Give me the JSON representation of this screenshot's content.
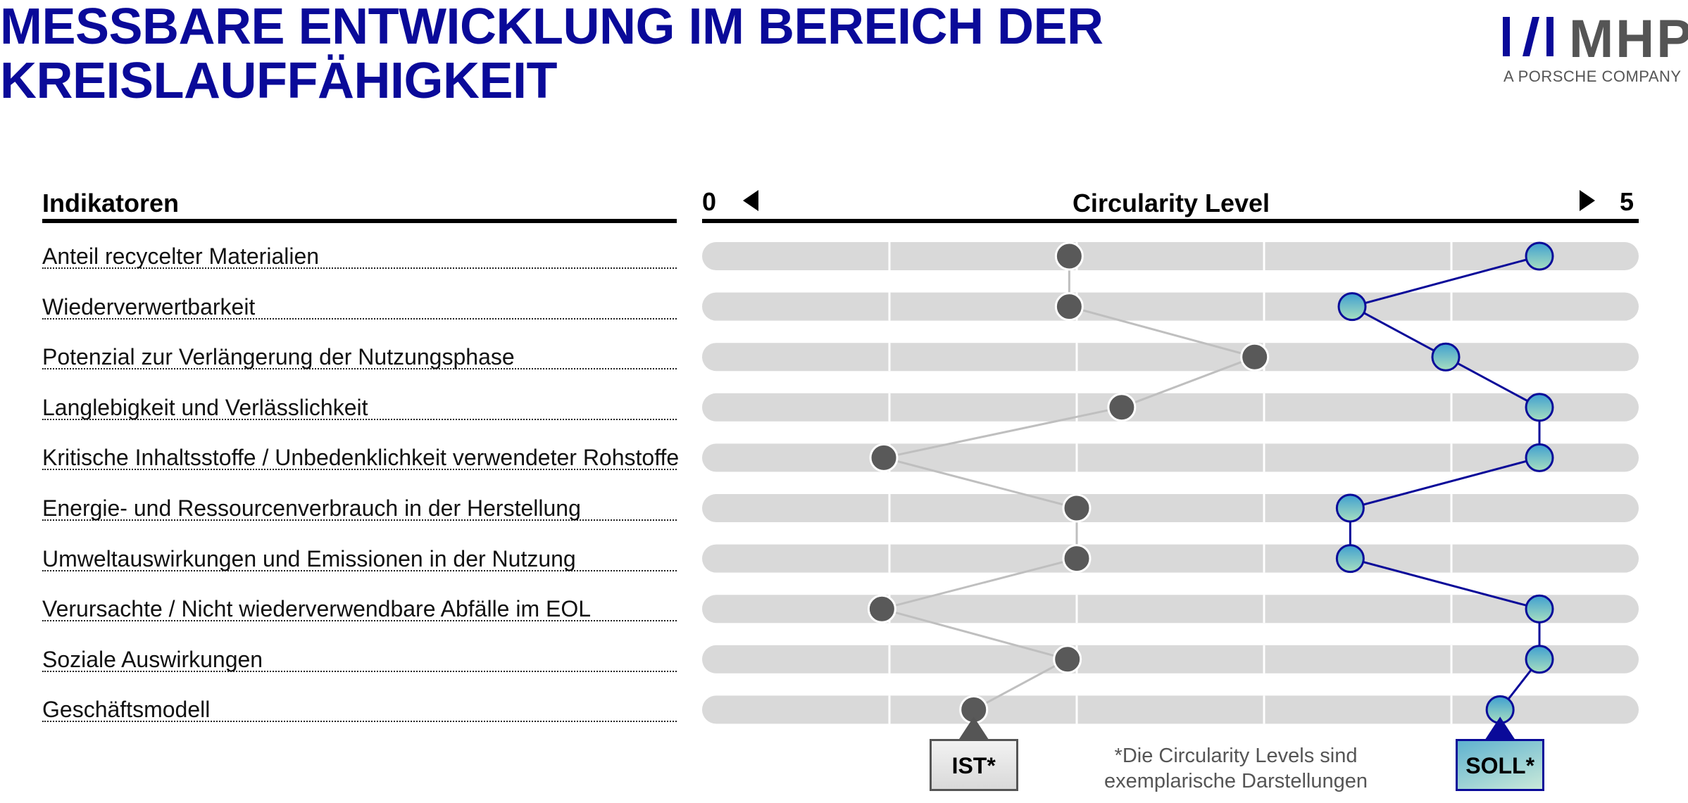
{
  "title": {
    "line1": "MESSBARE ENTWICKLUNG IM BEREICH DER",
    "line2": "KREISLAUFFÄHIGKEIT"
  },
  "logo": {
    "name": "MHP",
    "tagline": "A PORSCHE COMPANY",
    "colors": {
      "mark": "#0a0a99",
      "text": "#555555"
    }
  },
  "indicators_heading": "Indikatoren",
  "level_axis": {
    "title": "Circularity Level",
    "min_label": "0",
    "max_label": "5"
  },
  "footnote": {
    "line1": "*Die Circularity Levels sind",
    "line2": "exemplarische Darstellungen"
  },
  "markers": {
    "ist": "IST*",
    "soll": "SOLL*"
  },
  "colors": {
    "ist_point": "#595959",
    "ist_line": "#bfbfbf",
    "soll_point_fill_top": "#3f9fd0",
    "soll_point_fill_bottom": "#a8dfc0",
    "soll_line": "#0a0a99",
    "track": "#d9d9d9",
    "title": "#0a0a99"
  },
  "chart_data": {
    "type": "line",
    "orientation": "horizontal",
    "categories": [
      "Anteil recycelter Materialien",
      "Wiederverwertbarkeit",
      "Potenzial zur Verlängerung der Nutzungsphase",
      "Langlebigkeit und Verlässlichkeit",
      "Kritische Inhaltsstoffe / Unbedenklichkeit verwendeter Rohstoffe",
      "Energie- und Ressourcenverbrauch in der Herstellung",
      "Umweltauswirkungen und Emissionen in der Nutzung",
      "Verursachte / Nicht wiederverwendbare Abfälle im EOL",
      "Soziale Auswirkungen",
      "Geschäftsmodell"
    ],
    "series": [
      {
        "name": "IST*",
        "values": [
          1.96,
          1.96,
          2.95,
          2.24,
          0.97,
          2.0,
          2.0,
          0.96,
          1.95,
          1.45
        ]
      },
      {
        "name": "SOLL*",
        "values": [
          4.47,
          3.47,
          3.97,
          4.47,
          4.47,
          3.46,
          3.46,
          4.47,
          4.47,
          4.26
        ]
      }
    ],
    "xlim": [
      0,
      5
    ],
    "xticks": [
      0,
      1,
      2,
      3,
      4,
      5
    ],
    "grid": true,
    "legend": "markers-below"
  }
}
